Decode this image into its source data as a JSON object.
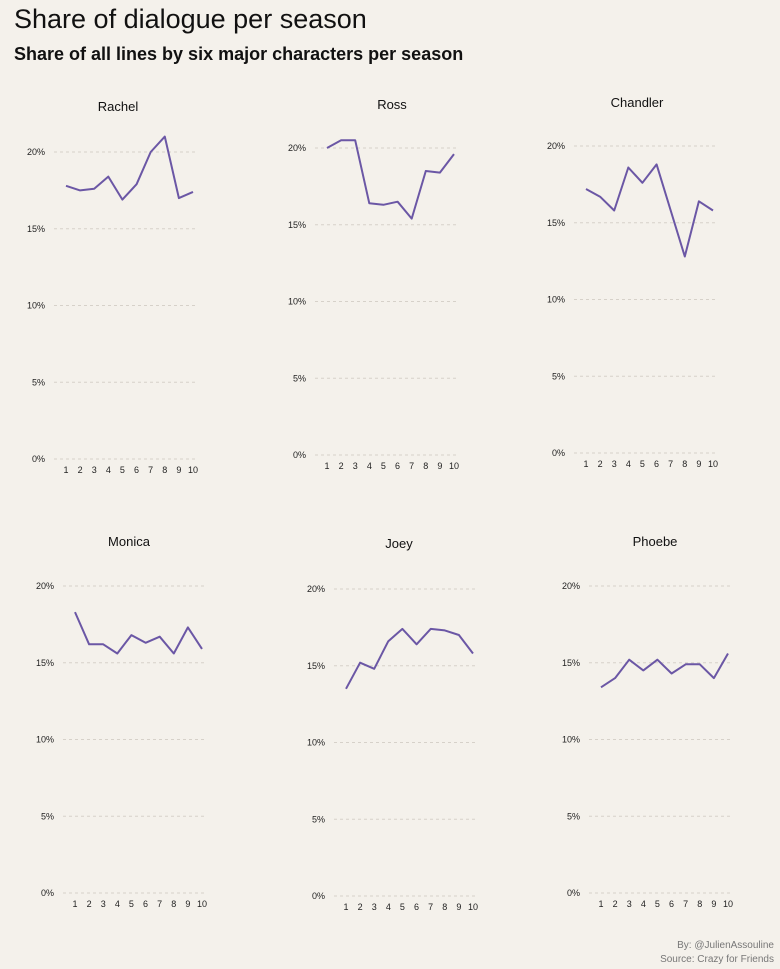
{
  "title": "Share of dialogue per season",
  "subtitle": "Share of all lines by six major characters per season",
  "credit_by": "By: @JulienAssouline",
  "credit_source": "Source: Crazy for Friends",
  "colors": {
    "line": "#6b57a5",
    "background": "#f4f1eb",
    "grid": "#d6d1c9"
  },
  "chart_data": [
    {
      "type": "line",
      "title": "Rachel",
      "x": [
        1,
        2,
        3,
        4,
        5,
        6,
        7,
        8,
        9,
        10
      ],
      "values": [
        17.8,
        17.5,
        17.6,
        18.4,
        16.9,
        17.9,
        20.0,
        21.0,
        17.0,
        17.4
      ],
      "ylim": [
        0,
        20
      ],
      "yticks": [
        0,
        5,
        10,
        15,
        20
      ],
      "ytick_labels": [
        "0%",
        "5%",
        "10%",
        "15%",
        "20%"
      ]
    },
    {
      "type": "line",
      "title": "Ross",
      "x": [
        1,
        2,
        3,
        4,
        5,
        6,
        7,
        8,
        9,
        10
      ],
      "values": [
        20.0,
        20.5,
        20.5,
        16.4,
        16.3,
        16.5,
        15.4,
        18.5,
        18.4,
        19.6
      ],
      "ylim": [
        0,
        20
      ],
      "yticks": [
        0,
        5,
        10,
        15,
        20
      ],
      "ytick_labels": [
        "0%",
        "5%",
        "10%",
        "15%",
        "20%"
      ]
    },
    {
      "type": "line",
      "title": "Chandler",
      "x": [
        1,
        2,
        3,
        4,
        5,
        6,
        7,
        8,
        9,
        10
      ],
      "values": [
        17.2,
        16.7,
        15.8,
        18.6,
        17.6,
        18.8,
        15.8,
        12.8,
        16.4,
        15.8
      ],
      "ylim": [
        0,
        20
      ],
      "yticks": [
        0,
        5,
        10,
        15,
        20
      ],
      "ytick_labels": [
        "0%",
        "5%",
        "10%",
        "15%",
        "20%"
      ]
    },
    {
      "type": "line",
      "title": "Monica",
      "x": [
        1,
        2,
        3,
        4,
        5,
        6,
        7,
        8,
        9,
        10
      ],
      "values": [
        18.3,
        16.2,
        16.2,
        15.6,
        16.8,
        16.3,
        16.7,
        15.6,
        17.3,
        15.9
      ],
      "ylim": [
        0,
        20
      ],
      "yticks": [
        0,
        5,
        10,
        15,
        20
      ],
      "ytick_labels": [
        "0%",
        "5%",
        "10%",
        "15%",
        "20%"
      ]
    },
    {
      "type": "line",
      "title": "Joey",
      "x": [
        1,
        2,
        3,
        4,
        5,
        6,
        7,
        8,
        9,
        10
      ],
      "values": [
        13.5,
        15.2,
        14.8,
        16.6,
        17.4,
        16.4,
        17.4,
        17.3,
        17.0,
        15.8
      ],
      "ylim": [
        0,
        20
      ],
      "yticks": [
        0,
        5,
        10,
        15,
        20
      ],
      "ytick_labels": [
        "0%",
        "5%",
        "10%",
        "15%",
        "20%"
      ]
    },
    {
      "type": "line",
      "title": "Phoebe",
      "x": [
        1,
        2,
        3,
        4,
        5,
        6,
        7,
        8,
        9,
        10
      ],
      "values": [
        13.4,
        14.0,
        15.2,
        14.5,
        15.2,
        14.3,
        14.9,
        14.9,
        14.0,
        15.6
      ],
      "ylim": [
        0,
        20
      ],
      "yticks": [
        0,
        5,
        10,
        15,
        20
      ],
      "ytick_labels": [
        "0%",
        "5%",
        "10%",
        "15%",
        "20%"
      ]
    }
  ]
}
